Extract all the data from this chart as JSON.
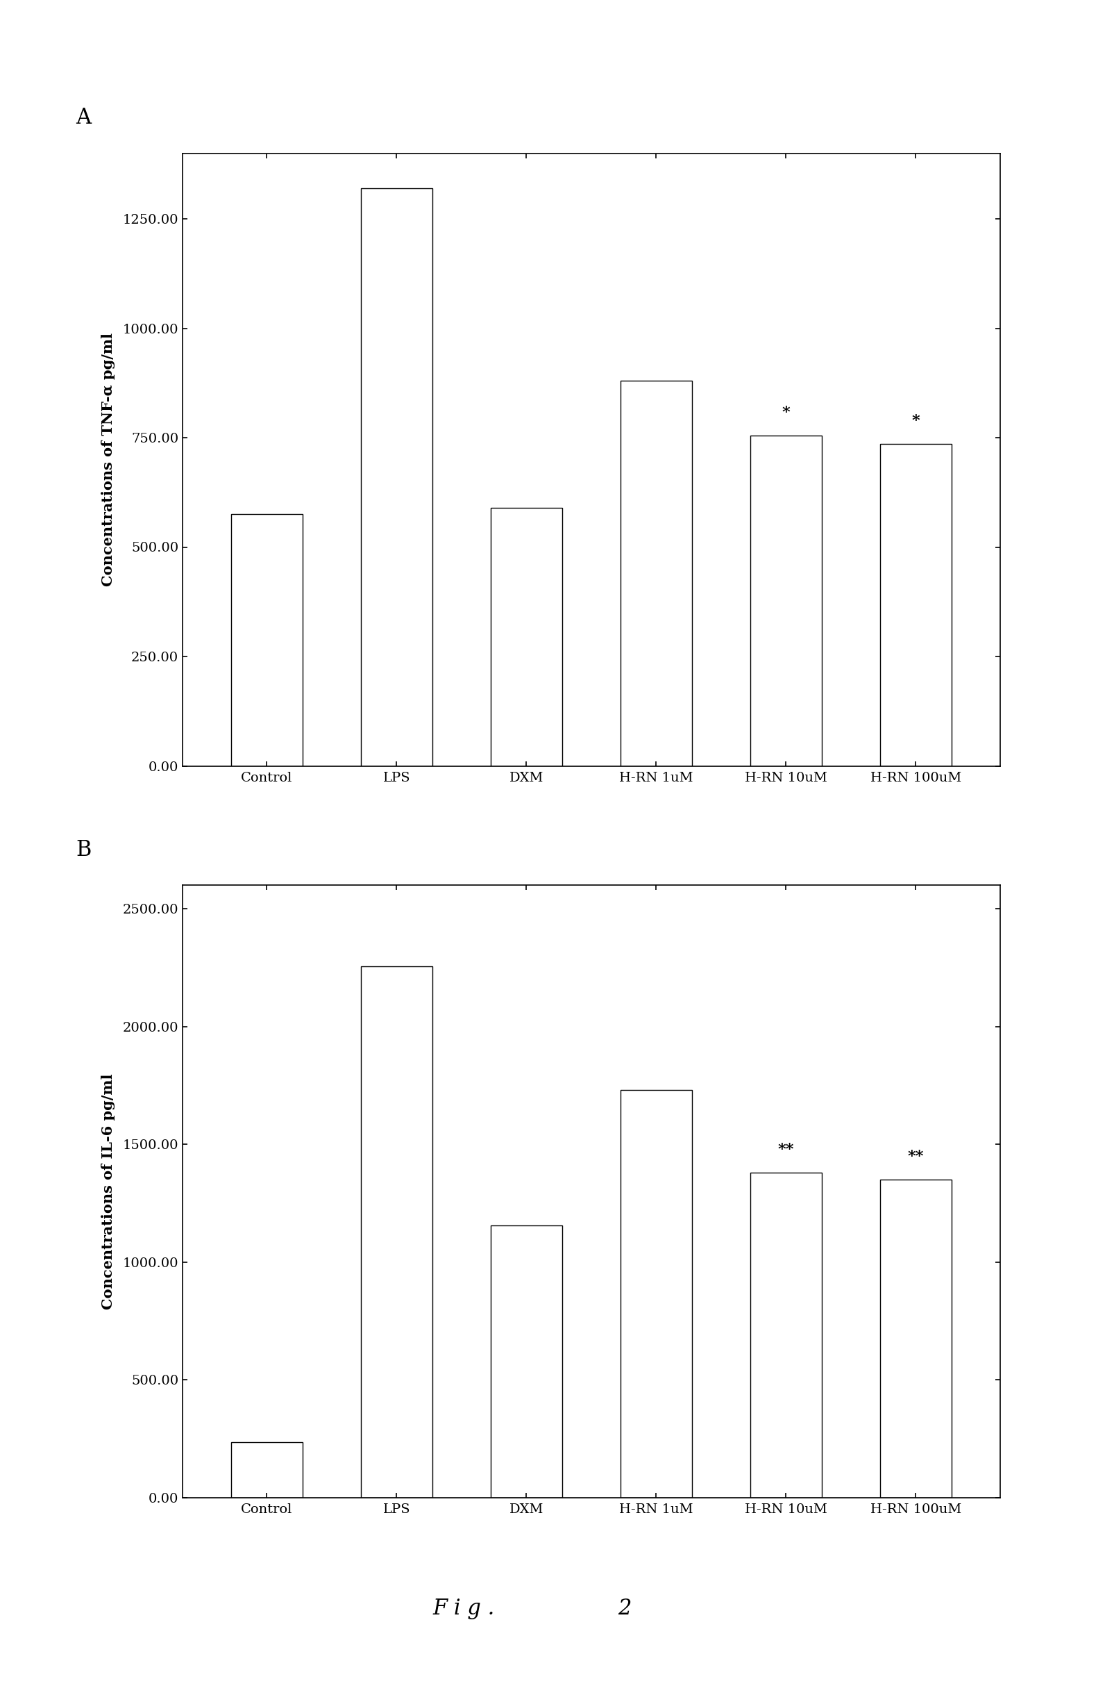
{
  "chart_A": {
    "categories": [
      "Control",
      "LPS",
      "DXM",
      "H-RN 1uM",
      "H-RN 10uM",
      "H-RN 100uM"
    ],
    "values": [
      575,
      1320,
      590,
      880,
      755,
      735
    ],
    "ylabel": "Concentrations of TNF-α pg/ml",
    "panel_label": "A",
    "ylim": [
      0,
      1400
    ],
    "yticks": [
      0.0,
      250.0,
      500.0,
      750.0,
      1000.0,
      1250.0
    ],
    "ytick_labels": [
      "0.00",
      "250.00",
      "500.00",
      "750.00",
      "1000.00",
      "1250.00"
    ],
    "significance_indices": [
      4,
      5
    ],
    "significance_labels": [
      "*",
      "*"
    ]
  },
  "chart_B": {
    "categories": [
      "Control",
      "LPS",
      "DXM",
      "H-RN 1uM",
      "H-RN 10uM",
      "H-RN 100uM"
    ],
    "values": [
      235,
      2255,
      1155,
      1730,
      1380,
      1350
    ],
    "ylabel": "Concentrations of IL-6 pg/ml",
    "panel_label": "B",
    "ylim": [
      0,
      2600
    ],
    "yticks": [
      0.0,
      500.0,
      1000.0,
      1500.0,
      2000.0,
      2500.0
    ],
    "ytick_labels": [
      "0.00",
      "500.00",
      "1000.00",
      "1500.00",
      "2000.00",
      "2500.00"
    ],
    "significance_indices": [
      4,
      5
    ],
    "significance_labels": [
      "**",
      "**"
    ]
  },
  "figure_label_fig": "F i g .",
  "figure_label_num": "2",
  "bar_color": "white",
  "bar_edgecolor": "black",
  "background_color": "white",
  "bar_linewidth": 1.0,
  "bar_width": 0.55
}
